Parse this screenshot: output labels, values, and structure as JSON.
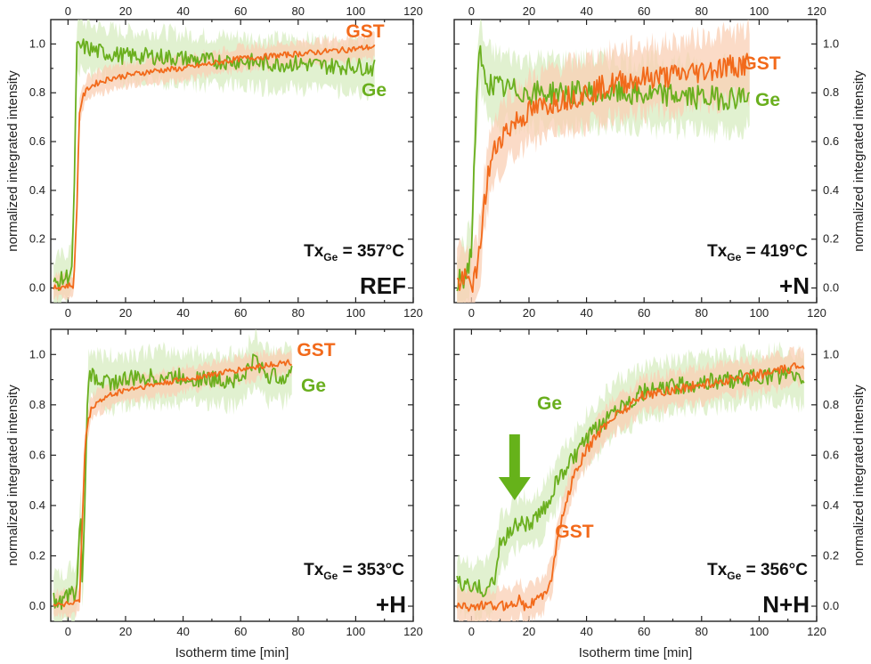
{
  "colors": {
    "ge": "#6aaf1e",
    "gst": "#f26a1b",
    "ge_band": "#d7ecc0",
    "gst_band": "#f9cfb4",
    "arrow": "#66b21a"
  },
  "common": {
    "xlabel": "Isotherm time [min]",
    "ylabel": "normalized integrated intensity",
    "xticks": [
      "0",
      "20",
      "40",
      "60",
      "80",
      "100",
      "120"
    ],
    "yticks": [
      "0.0",
      "0.2",
      "0.4",
      "0.6",
      "0.8",
      "1.0"
    ]
  },
  "chart_data": [
    {
      "type": "line",
      "panel": "top-left",
      "sample": "REF",
      "tx_main": "Tx",
      "tx_sub": "Ge",
      "tx_value": " = 357°C",
      "xlim": [
        -6,
        120
      ],
      "ylim": [
        -0.06,
        1.1
      ],
      "series": [
        {
          "name": "GST",
          "color": "#f26a1b",
          "x": [
            -5,
            0,
            2,
            3,
            4,
            5,
            7,
            10,
            15,
            20,
            30,
            40,
            50,
            60,
            70,
            80,
            90,
            100,
            107
          ],
          "y": [
            0.0,
            0.01,
            0.01,
            0.3,
            0.72,
            0.78,
            0.82,
            0.84,
            0.86,
            0.87,
            0.89,
            0.9,
            0.92,
            0.94,
            0.95,
            0.96,
            0.97,
            0.98,
            0.99
          ]
        },
        {
          "name": "Ge",
          "color": "#6aaf1e",
          "x": [
            -5,
            0,
            1.5,
            2.5,
            3,
            5,
            10,
            15,
            20,
            30,
            40,
            50,
            60,
            70,
            80,
            90,
            100,
            107
          ],
          "y": [
            0.01,
            0.05,
            0.08,
            0.6,
            0.98,
            0.99,
            0.97,
            0.96,
            0.95,
            0.95,
            0.94,
            0.93,
            0.93,
            0.92,
            0.92,
            0.91,
            0.91,
            0.9
          ]
        }
      ]
    },
    {
      "type": "line",
      "panel": "top-right",
      "sample": "+N",
      "tx_main": "Tx",
      "tx_sub": "Ge",
      "tx_value": " = 419°C",
      "xlim": [
        -6,
        120
      ],
      "ylim": [
        -0.06,
        1.1
      ],
      "series": [
        {
          "name": "GST",
          "color": "#f26a1b",
          "x": [
            -5,
            -2,
            0,
            2,
            4,
            6,
            8,
            10,
            15,
            20,
            30,
            40,
            50,
            60,
            70,
            80,
            90,
            97
          ],
          "y": [
            0.02,
            0.03,
            0.02,
            0.05,
            0.3,
            0.48,
            0.56,
            0.62,
            0.68,
            0.72,
            0.77,
            0.8,
            0.84,
            0.86,
            0.87,
            0.89,
            0.91,
            0.92
          ]
        },
        {
          "name": "Ge",
          "color": "#6aaf1e",
          "x": [
            -5,
            -2,
            0,
            1,
            2,
            3,
            4,
            6,
            10,
            20,
            30,
            40,
            50,
            60,
            70,
            80,
            90,
            97
          ],
          "y": [
            0.02,
            0.05,
            0.15,
            0.55,
            0.8,
            0.98,
            0.88,
            0.84,
            0.82,
            0.8,
            0.8,
            0.8,
            0.8,
            0.79,
            0.79,
            0.78,
            0.78,
            0.79
          ]
        }
      ]
    },
    {
      "type": "line",
      "panel": "bottom-left",
      "sample": "+H",
      "tx_main": "Tx",
      "tx_sub": "Ge",
      "tx_value": " = 353°C",
      "xlim": [
        -6,
        120
      ],
      "ylim": [
        -0.06,
        1.1
      ],
      "series": [
        {
          "name": "GST",
          "color": "#f26a1b",
          "x": [
            -5,
            0,
            4,
            5,
            6,
            7,
            8,
            10,
            15,
            20,
            30,
            40,
            50,
            60,
            70,
            78
          ],
          "y": [
            0.01,
            0.01,
            0.02,
            0.35,
            0.66,
            0.73,
            0.78,
            0.81,
            0.84,
            0.86,
            0.88,
            0.9,
            0.92,
            0.94,
            0.96,
            0.97
          ]
        },
        {
          "name": "Ge",
          "color": "#6aaf1e",
          "x": [
            -5,
            -3,
            0,
            3,
            4.5,
            5,
            7,
            8,
            10,
            15,
            20,
            30,
            40,
            50,
            60,
            65,
            70,
            78
          ],
          "y": [
            0.03,
            0.01,
            0.04,
            0.06,
            0.39,
            0.05,
            0.9,
            0.92,
            0.9,
            0.89,
            0.9,
            0.91,
            0.91,
            0.9,
            0.9,
            0.98,
            0.91,
            0.92
          ]
        }
      ]
    },
    {
      "type": "line",
      "panel": "bottom-right",
      "sample": "N+H",
      "tx_main": "Tx",
      "tx_sub": "Ge",
      "tx_value": " = 356°C",
      "xlim": [
        -6,
        120
      ],
      "ylim": [
        -0.06,
        1.1
      ],
      "series": [
        {
          "name": "GST",
          "color": "#f26a1b",
          "x": [
            -5,
            0,
            10,
            15,
            17,
            18,
            20,
            25,
            28,
            30,
            35,
            40,
            45,
            50,
            55,
            60,
            70,
            80,
            90,
            100,
            110,
            116
          ],
          "y": [
            0.0,
            0.0,
            0.0,
            0.01,
            0.04,
            0.0,
            0.01,
            0.04,
            0.12,
            0.28,
            0.5,
            0.62,
            0.7,
            0.76,
            0.8,
            0.84,
            0.86,
            0.88,
            0.9,
            0.92,
            0.94,
            0.96
          ]
        },
        {
          "name": "Ge",
          "color": "#6aaf1e",
          "x": [
            -5,
            0,
            5,
            8,
            10,
            15,
            18,
            20,
            25,
            28,
            30,
            35,
            40,
            45,
            50,
            55,
            60,
            70,
            80,
            90,
            100,
            110,
            116
          ],
          "y": [
            0.1,
            0.07,
            0.07,
            0.1,
            0.25,
            0.32,
            0.34,
            0.32,
            0.38,
            0.45,
            0.5,
            0.58,
            0.66,
            0.72,
            0.79,
            0.82,
            0.85,
            0.87,
            0.89,
            0.9,
            0.91,
            0.92,
            0.9
          ]
        }
      ]
    }
  ]
}
